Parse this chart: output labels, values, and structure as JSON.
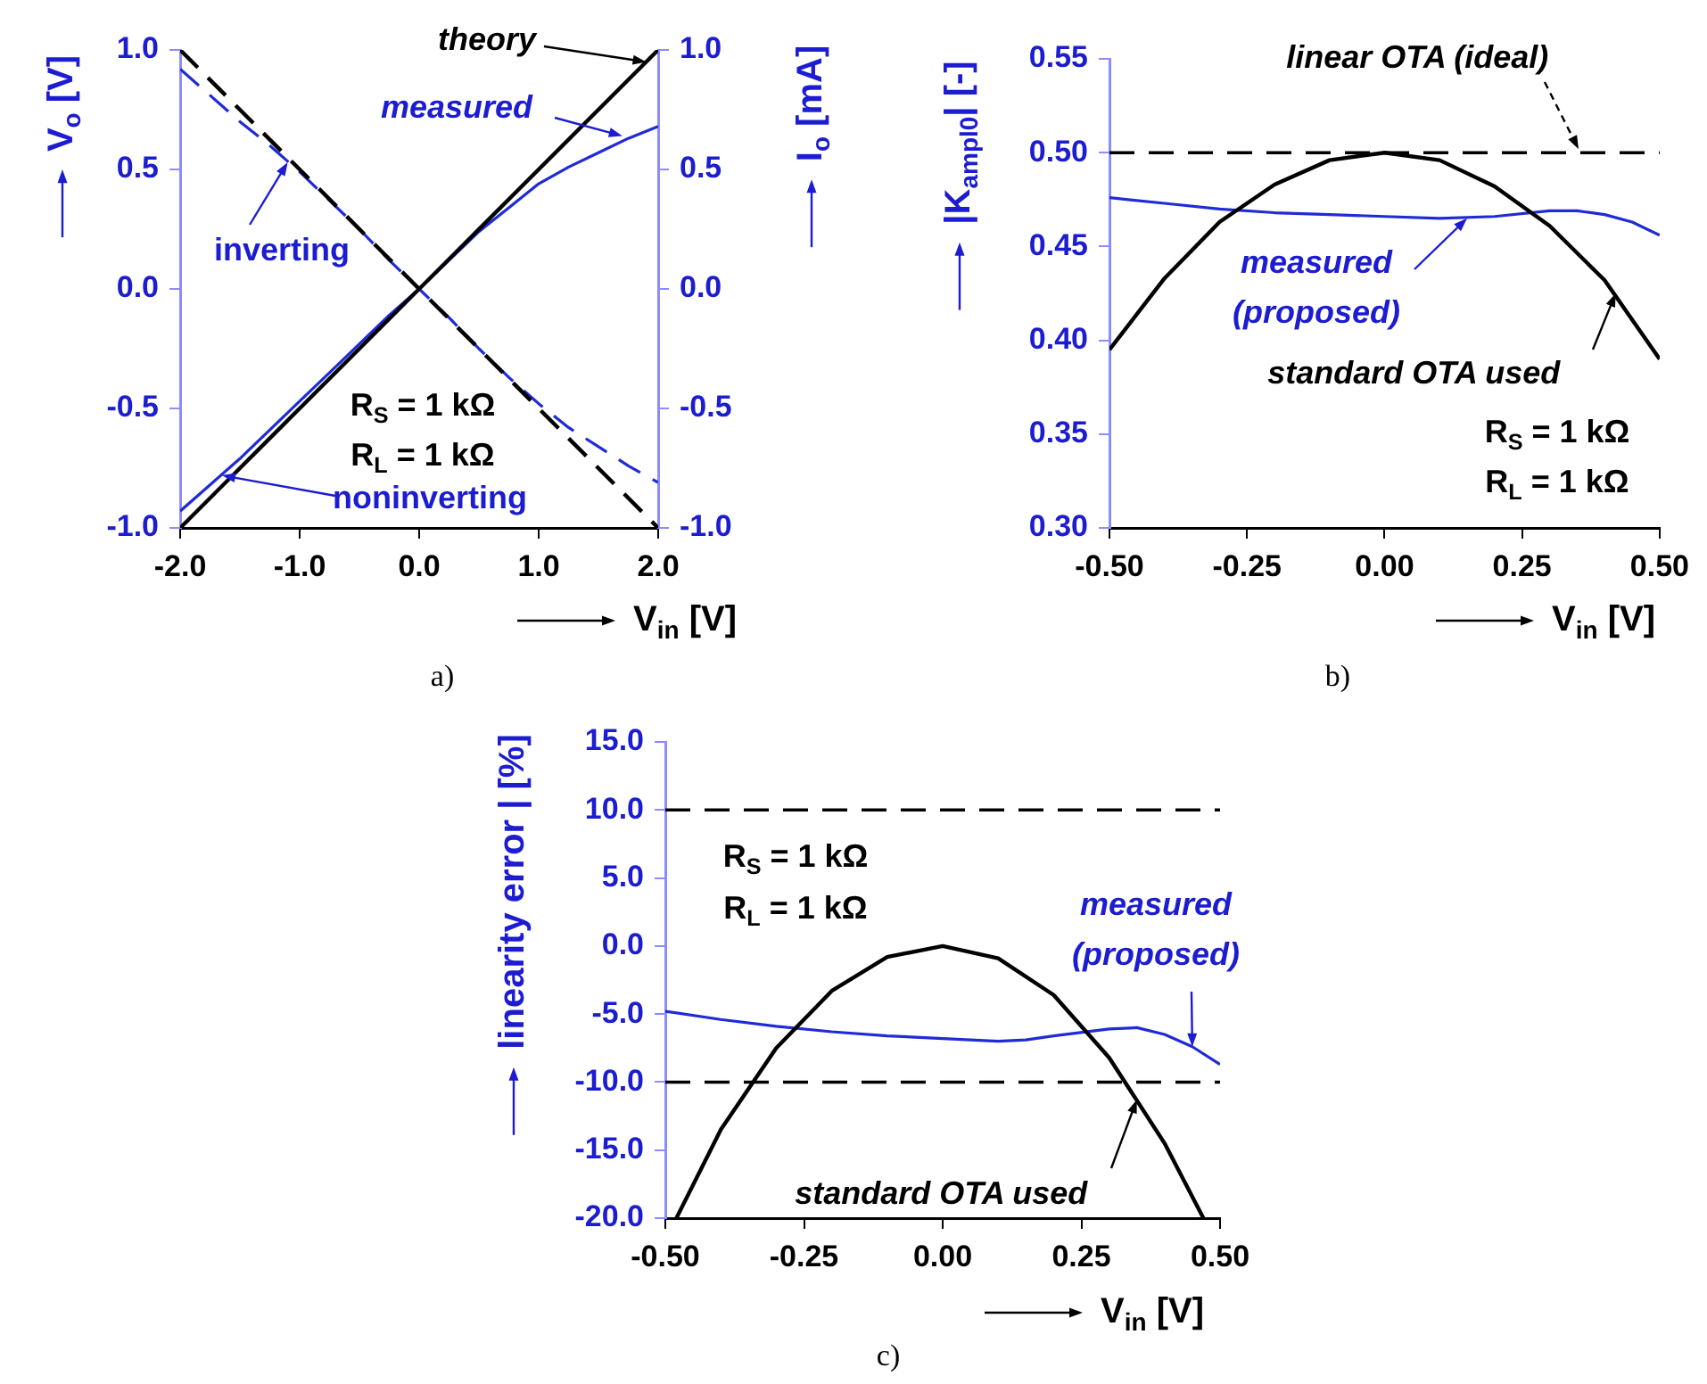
{
  "chart_data": [
    {
      "type": "line",
      "xlabel": "V$_{in}$ [V]",
      "ylabel": "V$_{o}$ [V]",
      "y2label": "I$_{o}$ [mA]",
      "xlim": [
        -2,
        2
      ],
      "xticks": [
        {
          "value": -2,
          "label": "-2.0"
        },
        {
          "value": -1,
          "label": "-1.0"
        },
        {
          "value": 0,
          "label": "0.0"
        },
        {
          "value": 1,
          "label": "1.0"
        },
        {
          "value": 2,
          "label": "2.0"
        }
      ],
      "ylim": [
        -1,
        1
      ],
      "yticks": [
        {
          "value": -1,
          "label": "-1.0"
        },
        -0.5,
        {
          "value": 0,
          "label": "0.0"
        },
        0.5,
        {
          "value": 1,
          "label": "1.0"
        }
      ],
      "y2lim": [
        -1,
        1
      ],
      "y2ticks": [
        {
          "value": -1,
          "label": "-1.0"
        },
        -0.5,
        {
          "value": 0,
          "label": "0.0"
        },
        0.5,
        {
          "value": 1,
          "label": "1.0"
        }
      ],
      "marker": "none",
      "series": [
        {
          "color": "#000000",
          "x": [
            -2,
            2
          ],
          "values": [
            -1,
            1
          ]
        },
        {
          "color": "#000000",
          "line_style": "dashed",
          "x": [
            -2,
            2
          ],
          "values": [
            1,
            -1
          ]
        },
        {
          "color": "#1f2bd6",
          "x": [
            -2,
            -1.75,
            -1.5,
            -1.25,
            -1,
            -0.75,
            -0.5,
            -0.25,
            0,
            0.25,
            0.5,
            0.75,
            1,
            1.25,
            1.5,
            1.75,
            2
          ],
          "values": [
            -0.93,
            -0.82,
            -0.71,
            -0.59,
            -0.47,
            -0.35,
            -0.23,
            -0.11,
            0,
            0.12,
            0.24,
            0.34,
            0.44,
            0.51,
            0.57,
            0.63,
            0.68
          ]
        },
        {
          "color": "#1f2bd6",
          "line_style": "dashed",
          "x": [
            -2,
            -1.75,
            -1.5,
            -1.25,
            -1,
            -0.75,
            -0.5,
            -0.25,
            0,
            0.25,
            0.5,
            0.75,
            1,
            1.25,
            1.5,
            1.75,
            2
          ],
          "values": [
            0.92,
            0.81,
            0.7,
            0.6,
            0.49,
            0.37,
            0.25,
            0.12,
            0,
            -0.12,
            -0.25,
            -0.37,
            -0.48,
            -0.58,
            -0.66,
            -0.74,
            -0.81
          ]
        }
      ],
      "annotations": [
        {
          "text": "theory",
          "x": 1.9,
          "y": 0.95
        },
        {
          "text": "measured",
          "x": 1.7,
          "y": 0.64
        },
        {
          "text": "inverting",
          "x": -1.1,
          "y": 0.53
        },
        {
          "text": "noninverting",
          "x": -1.65,
          "y": -0.78
        },
        "R$_{S}$ = 1 kΩ",
        "R$_{L}$ = 1 kΩ",
        "a)"
      ]
    },
    {
      "type": "line",
      "xlabel": "V$_{in}$ [V]",
      "ylabel": "|K$_{ampl0}$| [-]",
      "xlim": [
        -0.5,
        0.5
      ],
      "xticks": [
        {
          "value": -0.5,
          "label": "-0.50"
        },
        {
          "value": -0.25,
          "label": "-0.25"
        },
        {
          "value": 0,
          "label": "0.00"
        },
        {
          "value": 0.25,
          "label": "0.25"
        },
        {
          "value": 0.5,
          "label": "0.50"
        }
      ],
      "ylim": [
        0.3,
        0.55
      ],
      "yticks": [
        {
          "value": 0.3,
          "label": "0.30"
        },
        0.35,
        {
          "value": 0.4,
          "label": "0.40"
        },
        0.45,
        {
          "value": 0.5,
          "label": "0.50"
        },
        0.55
      ],
      "marker": "none",
      "ref_lines": [
        {
          "axis": "y",
          "value": 0.5,
          "label": "linear OTA (ideal)",
          "color": "#000000",
          "line_style": "dashed"
        }
      ],
      "series": [
        {
          "color": "#000000",
          "x": [
            -0.5,
            -0.4,
            -0.3,
            -0.2,
            -0.1,
            0,
            0.1,
            0.2,
            0.3,
            0.4,
            0.5
          ],
          "values": [
            0.395,
            0.433,
            0.463,
            0.483,
            0.496,
            0.5,
            0.496,
            0.482,
            0.461,
            0.432,
            0.39
          ]
        },
        {
          "color": "#1f2bd6",
          "x": [
            -0.5,
            -0.4,
            -0.3,
            -0.2,
            -0.1,
            0,
            0.1,
            0.2,
            0.3,
            0.35,
            0.4,
            0.45,
            0.5
          ],
          "values": [
            0.476,
            0.473,
            0.47,
            0.468,
            0.467,
            0.466,
            0.465,
            0.466,
            0.469,
            0.469,
            0.467,
            0.463,
            0.456
          ]
        }
      ],
      "annotations": [
        {
          "text": "measured\n(proposed)",
          "x": 0.15,
          "y": 0.465
        },
        {
          "text": "standard OTA used",
          "x": 0.42,
          "y": 0.425
        },
        "R$_{S}$ = 1 kΩ",
        "R$_{L}$ = 1 kΩ",
        "b)"
      ]
    },
    {
      "type": "line",
      "xlabel": "V$_{in}$ [V]",
      "ylabel": "linearity error | [%]",
      "xlim": [
        -0.5,
        0.5
      ],
      "xticks": [
        {
          "value": -0.5,
          "label": "-0.50"
        },
        {
          "value": -0.25,
          "label": "-0.25"
        },
        {
          "value": 0,
          "label": "0.00"
        },
        {
          "value": 0.25,
          "label": "0.25"
        },
        {
          "value": 0.5,
          "label": "0.50"
        }
      ],
      "ylim": [
        -20,
        15
      ],
      "yticks": [
        {
          "value": -20,
          "label": "-20.0"
        },
        {
          "value": -15,
          "label": "-15.0"
        },
        {
          "value": -10,
          "label": "-10.0"
        },
        {
          "value": -5,
          "label": "-5.0"
        },
        {
          "value": 0,
          "label": "0.0"
        },
        {
          "value": 5,
          "label": "5.0"
        },
        {
          "value": 10,
          "label": "10.0"
        },
        {
          "value": 15,
          "label": "15.0"
        }
      ],
      "marker": "none",
      "ref_lines": [
        {
          "axis": "y",
          "value": 10,
          "color": "#000000",
          "line_style": "dashed"
        },
        {
          "axis": "y",
          "value": -10,
          "color": "#000000",
          "line_style": "dashed"
        }
      ],
      "series": [
        {
          "color": "#000000",
          "x": [
            -0.48,
            -0.4,
            -0.3,
            -0.2,
            -0.1,
            0,
            0.1,
            0.2,
            0.3,
            0.4,
            0.47
          ],
          "values": [
            -20,
            -13.5,
            -7.5,
            -3.3,
            -0.8,
            0,
            -0.9,
            -3.6,
            -8.2,
            -14.5,
            -20
          ]
        },
        {
          "color": "#1f2bd6",
          "x": [
            -0.5,
            -0.4,
            -0.3,
            -0.2,
            -0.1,
            0,
            0.1,
            0.15,
            0.2,
            0.3,
            0.35,
            0.4,
            0.45,
            0.5
          ],
          "values": [
            -4.8,
            -5.4,
            -5.9,
            -6.3,
            -6.6,
            -6.8,
            -7,
            -6.9,
            -6.6,
            -6.1,
            -6,
            -6.5,
            -7.4,
            -8.7
          ]
        }
      ],
      "annotations": [
        "R$_{S}$ = 1 kΩ",
        "R$_{L}$ = 1 kΩ",
        {
          "text": "measured\n(proposed)",
          "x": 0.45,
          "y": -7.4
        },
        {
          "text": "standard OTA used",
          "x": 0.35,
          "y": -11.3
        },
        "c)"
      ]
    }
  ]
}
